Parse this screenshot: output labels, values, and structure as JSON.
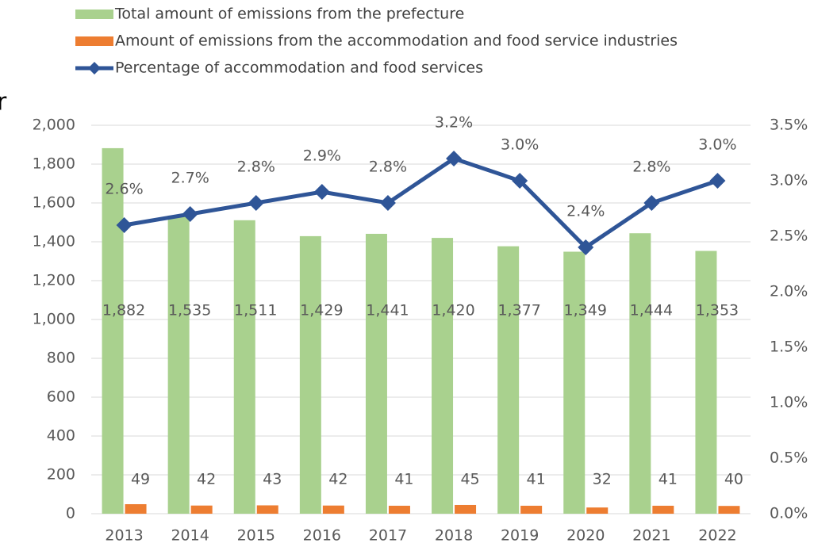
{
  "chart_data": {
    "type": "bar_line",
    "title": "r",
    "categories": [
      "2013",
      "2014",
      "2015",
      "2016",
      "2017",
      "2018",
      "2019",
      "2020",
      "2021",
      "2022"
    ],
    "series": [
      {
        "name": "Total amount of emissions from the prefecture",
        "type": "bar",
        "color": "#a9d18e",
        "values": [
          1882,
          1535,
          1511,
          1429,
          1441,
          1420,
          1377,
          1349,
          1444,
          1353
        ],
        "value_labels": [
          "1,882",
          "1,535",
          "1,511",
          "1,429",
          "1,441",
          "1,420",
          "1,377",
          "1,349",
          "1,444",
          "1,353"
        ]
      },
      {
        "name": "Amount of emissions from the accommodation and food service industries",
        "type": "bar",
        "color": "#ed7d31",
        "values": [
          49,
          42,
          43,
          42,
          41,
          45,
          41,
          32,
          41,
          40
        ]
      },
      {
        "name": "Percentage of accommodation and food services",
        "type": "line",
        "axis": "y2",
        "color": "#2f5597",
        "values": [
          2.6,
          2.7,
          2.8,
          2.9,
          2.8,
          3.2,
          3.0,
          2.4,
          2.8,
          3.0
        ],
        "value_labels": [
          "2.6%",
          "2.7%",
          "2.8%",
          "2.9%",
          "2.8%",
          "3.2%",
          "3.0%",
          "2.4%",
          "2.8%",
          "3.0%"
        ]
      }
    ],
    "ylim": [
      0,
      2000
    ],
    "yticks": [
      0,
      200,
      400,
      600,
      800,
      {
        "value": 1000,
        "label": "1,000"
      },
      {
        "value": 1200,
        "label": "1,200"
      },
      {
        "value": 1400,
        "label": "1,400"
      },
      {
        "value": 1600,
        "label": "1,600"
      },
      {
        "value": 1800,
        "label": "1,800"
      },
      {
        "value": 2000,
        "label": "2,000"
      }
    ],
    "y2lim": [
      0,
      3.5
    ],
    "y2ticks": [
      {
        "value": 0,
        "label": "0.0%"
      },
      {
        "value": 0.5,
        "label": "0.5%"
      },
      {
        "value": 1,
        "label": "1.0%"
      },
      {
        "value": 1.5,
        "label": "1.5%"
      },
      {
        "value": 2,
        "label": "2.0%"
      },
      {
        "value": 2.5,
        "label": "2.5%"
      },
      {
        "value": 3,
        "label": "3.0%"
      },
      {
        "value": 3.5,
        "label": "3.5%"
      }
    ],
    "grid": true
  }
}
